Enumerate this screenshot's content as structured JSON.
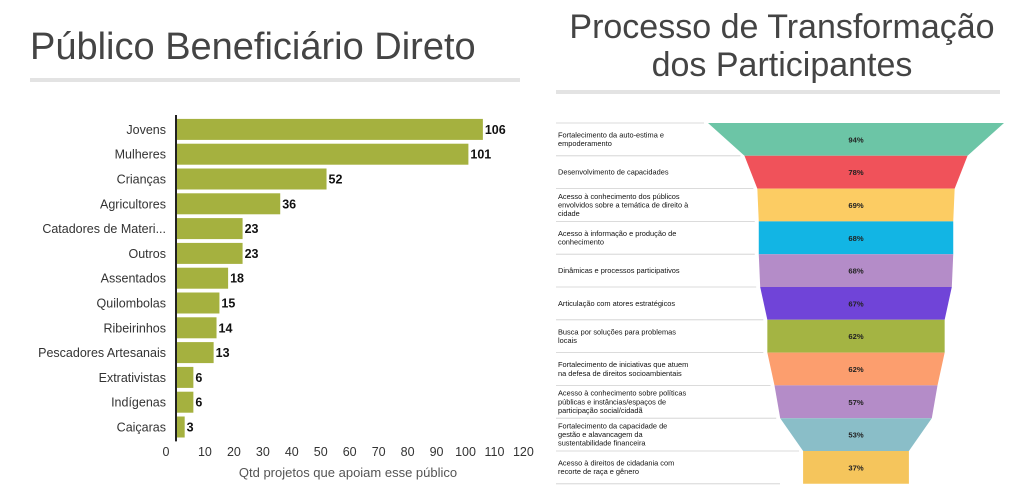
{
  "left_title": "Público Beneficiário Direto",
  "right_title_line1": "Processo de Transformação",
  "right_title_line2": "dos Participantes",
  "chart_data": [
    {
      "type": "bar",
      "orientation": "horizontal",
      "title": "Público Beneficiário Direto",
      "xlabel": "Qtd projetos que apoiam esse público",
      "ylabel": "",
      "xlim": [
        0,
        120
      ],
      "xticks": [
        "0",
        "10",
        "20",
        "30",
        "40",
        "50",
        "60",
        "70",
        "80",
        "90",
        "100",
        "110",
        "120"
      ],
      "categories": [
        "Jovens",
        "Mulheres",
        "Crianças",
        "Agricultores",
        "Catadores de Materi...",
        "Outros",
        "Assentados",
        "Quilombolas",
        "Ribeirinhos",
        "Pescadores Artesanais",
        "Extrativistas",
        "Indígenas",
        "Caiçaras"
      ],
      "values": [
        106,
        101,
        52,
        36,
        23,
        23,
        18,
        15,
        14,
        13,
        6,
        6,
        3
      ],
      "color": "#a5b13f",
      "grid": false
    },
    {
      "type": "funnel",
      "title": "Processo de Transformação dos Participantes",
      "categories": [
        [
          "Fortalecimento da auto-estima e",
          "empoderamento"
        ],
        [
          "Desenvolvimento de capacidades"
        ],
        [
          "Acesso à conhecimento dos públicos",
          "envolvidos sobre a temática de direito à",
          "cidade"
        ],
        [
          "Acesso à informação e produção de",
          "conhecimento"
        ],
        [
          "Dinâmicas e processos participativos"
        ],
        [
          "Articulação com atores estratégicos"
        ],
        [
          "Busca por soluções para problemas",
          "locais"
        ],
        [
          "Fortalecimento de iniciativas que atuem",
          "na defesa de direitos socioambientais"
        ],
        [
          "Acesso à conhecimento sobre políticas",
          "públicas e instâncias/espaços de",
          "participação social/cidadã"
        ],
        [
          "Fortalecimento da capacidade de",
          "gestão e alavancagem da",
          "sustentabilidade financeira"
        ],
        [
          "Acesso à direitos de cidadania com",
          "recorte de raça e gênero"
        ]
      ],
      "values": [
        94,
        78,
        69,
        68,
        68,
        67,
        62,
        62,
        57,
        53,
        37
      ],
      "value_labels": [
        "94%",
        "78%",
        "69%",
        "68%",
        "68%",
        "67%",
        "62%",
        "62%",
        "57%",
        "53%",
        "37%"
      ],
      "colors": [
        "#6cc5a6",
        "#f0525a",
        "#fccc63",
        "#12b5e4",
        "#b48cc8",
        "#7044d8",
        "#a4b443",
        "#fc9e6e",
        "#b48cc8",
        "#8abec8",
        "#f5c55c"
      ],
      "value_label_colors": [
        "#222",
        "#fff",
        "#222",
        "#222",
        "#222",
        "#fff",
        "#222",
        "#222",
        "#222",
        "#222",
        "#222"
      ]
    }
  ]
}
